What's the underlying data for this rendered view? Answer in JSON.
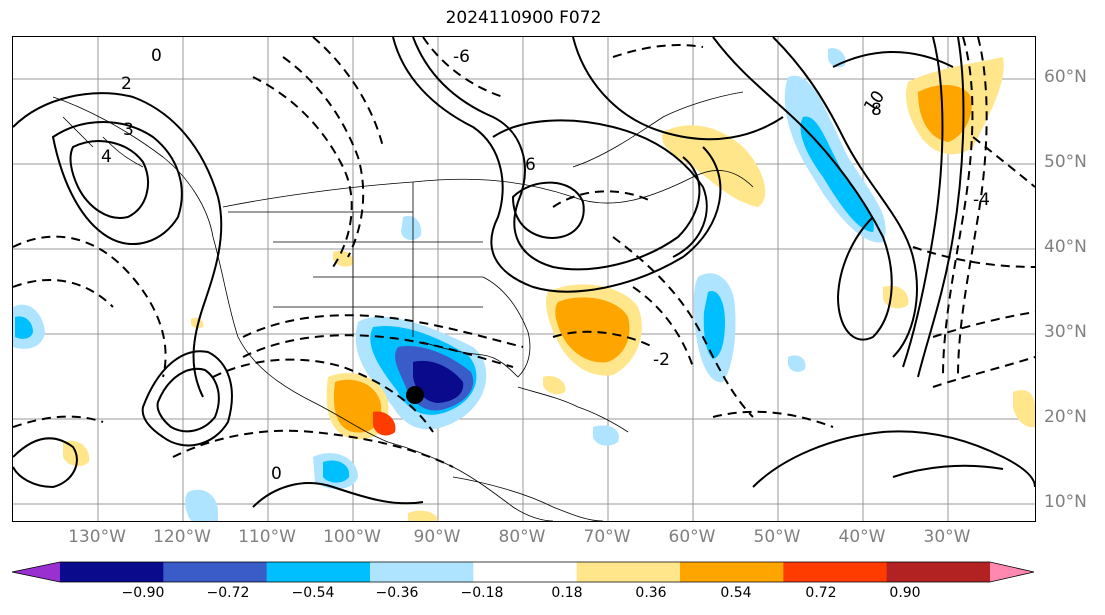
{
  "title": "2024110900 F072",
  "lat_labels": [
    "60°N",
    "50°N",
    "40°N",
    "30°N",
    "20°N",
    "10°N"
  ],
  "lon_labels": [
    "130°W",
    "120°W",
    "110°W",
    "100°W",
    "90°W",
    "80°W",
    "70°W",
    "60°W",
    "50°W",
    "40°W",
    "30°W"
  ],
  "colorbar": {
    "ticks": [
      "−0.90",
      "−0.72",
      "−0.54",
      "−0.36",
      "−0.18",
      "0.18",
      "0.36",
      "0.54",
      "0.72",
      "0.90"
    ],
    "colors": [
      "#9b30d0",
      "#0a0a8c",
      "#3a5cc9",
      "#00bfff",
      "#aee4ff",
      "#ffffff",
      "#ffe68a",
      "#ffa500",
      "#ff3c00",
      "#b22222",
      "#ff88b0"
    ]
  },
  "contour_labels": [
    "0",
    "2",
    "3",
    "4",
    "6",
    "8",
    "10",
    "0",
    "-2",
    "-4",
    "-6"
  ],
  "marker": "storm-center-dot"
}
